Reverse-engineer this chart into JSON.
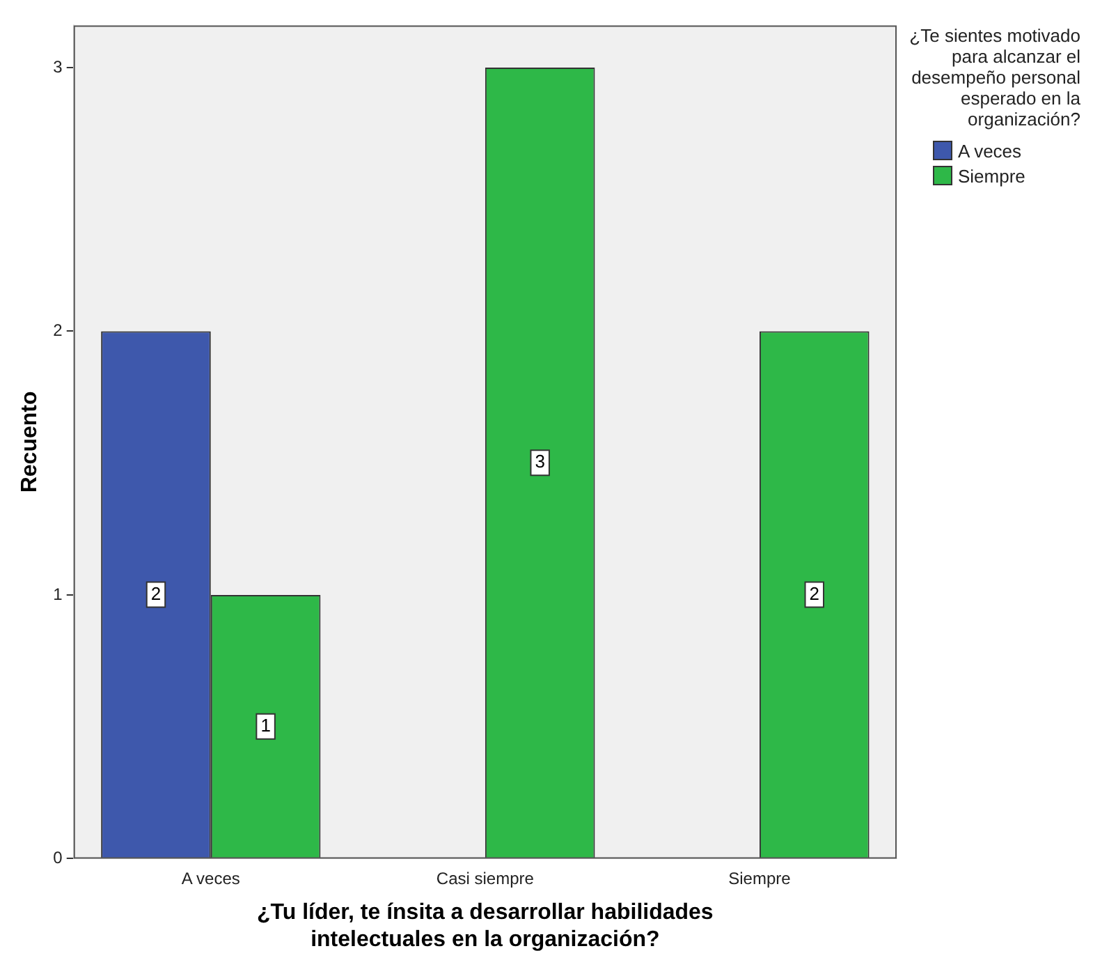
{
  "chart_data": {
    "type": "bar",
    "xlabel": "¿Tu líder, te ínsita a desarrollar habilidades intelectuales en la organización?",
    "ylabel": "Recuento",
    "legend_title": "¿Te sientes motivado para alcanzar el desempeño personal esperado en la organización?",
    "categories": [
      "A veces",
      "Casi siempre",
      "Siempre"
    ],
    "series": [
      {
        "name": "A veces",
        "color": "#3e58ac",
        "values": [
          2,
          null,
          null
        ]
      },
      {
        "name": "Siempre",
        "color": "#2eb848",
        "values": [
          1,
          3,
          2
        ]
      }
    ],
    "ylim": [
      0,
      3.16
    ],
    "yticks": [
      0,
      1,
      2,
      3
    ],
    "data_labels": true,
    "legend": "right"
  }
}
